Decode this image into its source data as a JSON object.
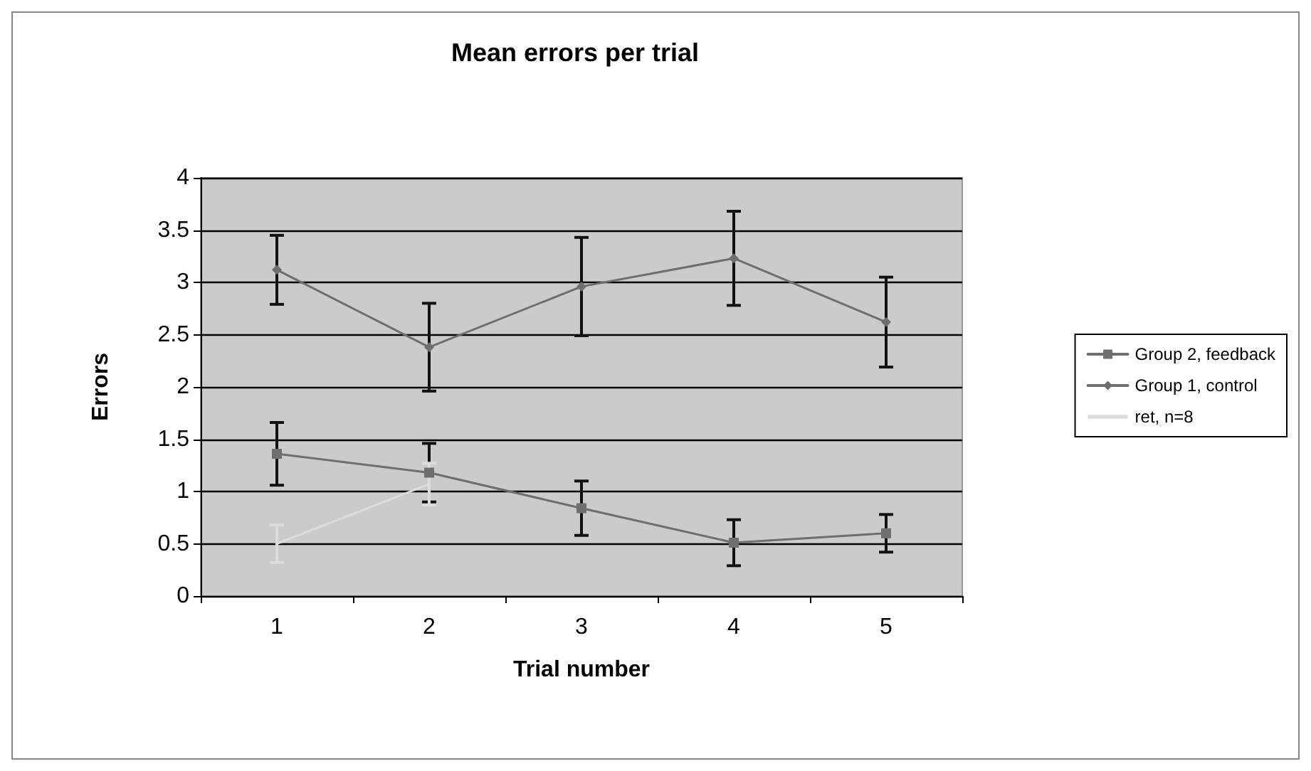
{
  "chart_data": {
    "type": "line",
    "title": "Mean errors per trial",
    "xlabel": "Trial number",
    "ylabel": "Errors",
    "categories": [
      "1",
      "2",
      "3",
      "4",
      "5"
    ],
    "ylim": [
      0,
      4
    ],
    "yticks": [
      0,
      0.5,
      1,
      1.5,
      2,
      2.5,
      3,
      3.5,
      4
    ],
    "grid": "y",
    "legend": "right",
    "line_style": "solid",
    "series": [
      {
        "name": "Group 2, feedback",
        "color": "#6e6e6e",
        "marker": "square",
        "values": [
          1.36,
          1.18,
          0.84,
          0.51,
          0.6
        ],
        "errors": [
          0.3,
          0.28,
          0.26,
          0.22,
          0.18
        ]
      },
      {
        "name": "Group 1, control",
        "color": "#6e6e6e",
        "marker": "diamond",
        "values": [
          3.12,
          2.38,
          2.96,
          3.23,
          2.62
        ],
        "errors": [
          0.33,
          0.42,
          0.47,
          0.45,
          0.43
        ]
      },
      {
        "name": "ret, n=8",
        "color": "#dcdcdc",
        "marker": "none",
        "values": [
          0.5,
          1.07,
          null,
          null,
          null
        ],
        "errors": [
          0.18,
          0.2,
          null,
          null,
          null
        ]
      }
    ]
  }
}
